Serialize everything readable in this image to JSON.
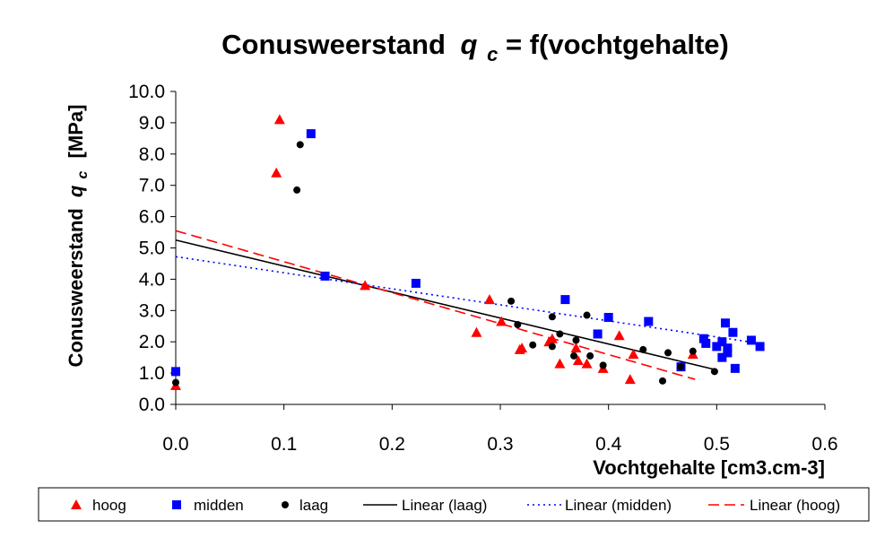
{
  "chart_data": {
    "type": "scatter",
    "title_main": "Conusweerstand",
    "title_symbol": "q",
    "title_sub": "c",
    "title_rest": " = f(vochtgehalte)",
    "xlabel": "Vochtgehalte [cm3.cm-3]",
    "ylabel_main": "Conusweerstand",
    "ylabel_symbol": "q",
    "ylabel_sub": "c",
    "ylabel_unit": "[MPa]",
    "xlim": [
      0,
      0.6
    ],
    "ylim": [
      0,
      10
    ],
    "xticks": [
      "0.0",
      "0.1",
      "0.2",
      "0.3",
      "0.4",
      "0.5",
      "0.6"
    ],
    "yticks": [
      "0.0",
      "1.0",
      "2.0",
      "3.0",
      "4.0",
      "5.0",
      "6.0",
      "7.0",
      "8.0",
      "9.0",
      "10.0"
    ],
    "grid": false,
    "legend_position": "bottom",
    "series": [
      {
        "name": "hoog",
        "marker": "triangle",
        "color": "#ff0000",
        "points": [
          [
            0.0,
            0.6
          ],
          [
            0.093,
            7.4
          ],
          [
            0.096,
            9.1
          ],
          [
            0.175,
            3.8
          ],
          [
            0.278,
            2.3
          ],
          [
            0.29,
            3.35
          ],
          [
            0.301,
            2.65
          ],
          [
            0.318,
            1.75
          ],
          [
            0.32,
            1.8
          ],
          [
            0.345,
            2.0
          ],
          [
            0.348,
            2.1
          ],
          [
            0.355,
            1.3
          ],
          [
            0.37,
            1.8
          ],
          [
            0.372,
            1.4
          ],
          [
            0.38,
            1.3
          ],
          [
            0.395,
            1.15
          ],
          [
            0.41,
            2.2
          ],
          [
            0.42,
            0.8
          ],
          [
            0.423,
            1.6
          ],
          [
            0.478,
            1.6
          ]
        ]
      },
      {
        "name": "midden",
        "marker": "square",
        "color": "#0000ff",
        "points": [
          [
            0.0,
            1.05
          ],
          [
            0.125,
            8.65
          ],
          [
            0.138,
            4.1
          ],
          [
            0.222,
            3.87
          ],
          [
            0.36,
            3.35
          ],
          [
            0.39,
            2.25
          ],
          [
            0.4,
            2.78
          ],
          [
            0.437,
            2.65
          ],
          [
            0.467,
            1.2
          ],
          [
            0.488,
            2.1
          ],
          [
            0.49,
            1.95
          ],
          [
            0.5,
            1.85
          ],
          [
            0.505,
            2.0
          ],
          [
            0.505,
            1.5
          ],
          [
            0.508,
            2.6
          ],
          [
            0.51,
            1.65
          ],
          [
            0.51,
            1.8
          ],
          [
            0.515,
            2.3
          ],
          [
            0.517,
            1.15
          ],
          [
            0.532,
            2.05
          ],
          [
            0.54,
            1.85
          ]
        ]
      },
      {
        "name": "laag",
        "marker": "circle",
        "color": "#000000",
        "points": [
          [
            0.0,
            0.7
          ],
          [
            0.112,
            6.85
          ],
          [
            0.115,
            8.3
          ],
          [
            0.31,
            3.3
          ],
          [
            0.316,
            2.55
          ],
          [
            0.33,
            1.9
          ],
          [
            0.348,
            1.85
          ],
          [
            0.348,
            2.8
          ],
          [
            0.355,
            2.25
          ],
          [
            0.368,
            1.55
          ],
          [
            0.37,
            2.05
          ],
          [
            0.38,
            2.85
          ],
          [
            0.383,
            1.55
          ],
          [
            0.395,
            1.25
          ],
          [
            0.432,
            1.75
          ],
          [
            0.45,
            0.75
          ],
          [
            0.455,
            1.65
          ],
          [
            0.467,
            1.2
          ],
          [
            0.478,
            1.7
          ],
          [
            0.498,
            1.05
          ]
        ]
      }
    ],
    "trendlines": [
      {
        "name": "Linear (laag)",
        "color": "#000000",
        "style": "solid",
        "x": [
          0.0,
          0.5
        ],
        "y": [
          5.25,
          1.1
        ]
      },
      {
        "name": "Linear (midden)",
        "color": "#0000ff",
        "style": "dotted",
        "x": [
          0.0,
          0.54
        ],
        "y": [
          4.72,
          1.95
        ]
      },
      {
        "name": "Linear (hoog)",
        "color": "#ff0000",
        "style": "dashed",
        "x": [
          0.0,
          0.48
        ],
        "y": [
          5.55,
          0.8
        ]
      }
    ]
  }
}
